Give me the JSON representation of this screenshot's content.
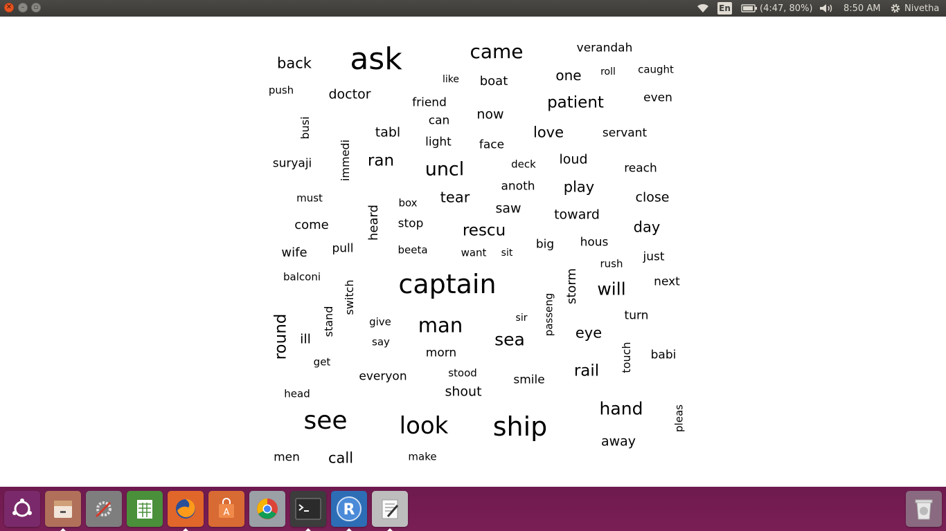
{
  "panel": {
    "keyboard_layout": "En",
    "battery": "(4:47, 80%)",
    "clock": "8:50 AM",
    "user": "Nivetha",
    "icons": [
      "wifi-icon",
      "battery-icon",
      "volume-icon",
      "gear-icon"
    ]
  },
  "words": [
    {
      "t": "ask",
      "s": 44
    },
    {
      "t": "came",
      "s": 28
    },
    {
      "t": "verandah",
      "s": 17
    },
    {
      "t": "back",
      "s": 21
    },
    {
      "t": "like",
      "s": 14
    },
    {
      "t": "boat",
      "s": 18
    },
    {
      "t": "one",
      "s": 20
    },
    {
      "t": "roll",
      "s": 14
    },
    {
      "t": "caught",
      "s": 15
    },
    {
      "t": "push",
      "s": 15
    },
    {
      "t": "doctor",
      "s": 19
    },
    {
      "t": "friend",
      "s": 17
    },
    {
      "t": "patient",
      "s": 23
    },
    {
      "t": "even",
      "s": 17
    },
    {
      "t": "now",
      "s": 19
    },
    {
      "t": "busi",
      "s": 16
    },
    {
      "t": "tabl",
      "s": 19
    },
    {
      "t": "can",
      "s": 17
    },
    {
      "t": "love",
      "s": 21
    },
    {
      "t": "servant",
      "s": 17
    },
    {
      "t": "light",
      "s": 17
    },
    {
      "t": "face",
      "s": 17
    },
    {
      "t": "immedi",
      "s": 16
    },
    {
      "t": "suryaji",
      "s": 17
    },
    {
      "t": "ran",
      "s": 23
    },
    {
      "t": "uncl",
      "s": 27
    },
    {
      "t": "deck",
      "s": 15
    },
    {
      "t": "loud",
      "s": 19
    },
    {
      "t": "reach",
      "s": 17
    },
    {
      "t": "anoth",
      "s": 17
    },
    {
      "t": "play",
      "s": 21
    },
    {
      "t": "must",
      "s": 15
    },
    {
      "t": "tear",
      "s": 21
    },
    {
      "t": "box",
      "s": 15
    },
    {
      "t": "saw",
      "s": 19
    },
    {
      "t": "close",
      "s": 19
    },
    {
      "t": "heard",
      "s": 18
    },
    {
      "t": "toward",
      "s": 19
    },
    {
      "t": "come",
      "s": 18
    },
    {
      "t": "stop",
      "s": 17
    },
    {
      "t": "rescu",
      "s": 23
    },
    {
      "t": "day",
      "s": 21
    },
    {
      "t": "wife",
      "s": 18
    },
    {
      "t": "pull",
      "s": 17
    },
    {
      "t": "beeta",
      "s": 15
    },
    {
      "t": "want",
      "s": 15
    },
    {
      "t": "sit",
      "s": 14
    },
    {
      "t": "big",
      "s": 17
    },
    {
      "t": "hous",
      "s": 17
    },
    {
      "t": "just",
      "s": 17
    },
    {
      "t": "rush",
      "s": 15
    },
    {
      "t": "balconi",
      "s": 15
    },
    {
      "t": "captain",
      "s": 38
    },
    {
      "t": "storm",
      "s": 18
    },
    {
      "t": "will",
      "s": 25
    },
    {
      "t": "next",
      "s": 17
    },
    {
      "t": "switch",
      "s": 16
    },
    {
      "t": "passeng",
      "s": 15
    },
    {
      "t": "stand",
      "s": 16
    },
    {
      "t": "sir",
      "s": 14
    },
    {
      "t": "turn",
      "s": 17
    },
    {
      "t": "round",
      "s": 23
    },
    {
      "t": "give",
      "s": 15
    },
    {
      "t": "man",
      "s": 29
    },
    {
      "t": "eye",
      "s": 21
    },
    {
      "t": "ill",
      "s": 19
    },
    {
      "t": "say",
      "s": 15
    },
    {
      "t": "sea",
      "s": 25
    },
    {
      "t": "touch",
      "s": 16
    },
    {
      "t": "babi",
      "s": 17
    },
    {
      "t": "get",
      "s": 15
    },
    {
      "t": "morn",
      "s": 17
    },
    {
      "t": "stood",
      "s": 15
    },
    {
      "t": "everyon",
      "s": 17
    },
    {
      "t": "smile",
      "s": 17
    },
    {
      "t": "rail",
      "s": 23
    },
    {
      "t": "head",
      "s": 15
    },
    {
      "t": "shout",
      "s": 19
    },
    {
      "t": "hand",
      "s": 25
    },
    {
      "t": "see",
      "s": 36
    },
    {
      "t": "look",
      "s": 34
    },
    {
      "t": "ship",
      "s": 38
    },
    {
      "t": "pleas",
      "s": 15
    },
    {
      "t": "away",
      "s": 19
    },
    {
      "t": "men",
      "s": 17
    },
    {
      "t": "call",
      "s": 21
    },
    {
      "t": "make",
      "s": 15
    }
  ],
  "dock": [
    {
      "id": "dash",
      "icon": "ubuntu-logo-icon",
      "color": "#7a2a6a",
      "running": false
    },
    {
      "id": "files",
      "icon": "file-cabinet-icon",
      "color": "#b0705a",
      "running": true
    },
    {
      "id": "settings",
      "icon": "settings-tools-icon",
      "color": "#7e7e7e",
      "running": false
    },
    {
      "id": "calc",
      "icon": "spreadsheet-icon",
      "color": "#4a8f3a",
      "running": false
    },
    {
      "id": "firefox",
      "icon": "firefox-icon",
      "color": "#e0662a",
      "running": true
    },
    {
      "id": "software",
      "icon": "software-center-icon",
      "color": "#d86a34",
      "running": false
    },
    {
      "id": "chrome",
      "icon": "chrome-icon",
      "color": "#9aa0a6",
      "running": false
    },
    {
      "id": "terminal",
      "icon": "terminal-icon",
      "color": "#3c3c3c",
      "running": true
    },
    {
      "id": "rstudio",
      "icon": "r-logo-icon",
      "color": "#2d6db5",
      "running": true
    },
    {
      "id": "editor",
      "icon": "text-editor-icon",
      "color": "#bdbdbd",
      "running": true
    },
    {
      "id": "trash",
      "icon": "trash-icon",
      "color": "#8a6a80",
      "running": false
    }
  ]
}
